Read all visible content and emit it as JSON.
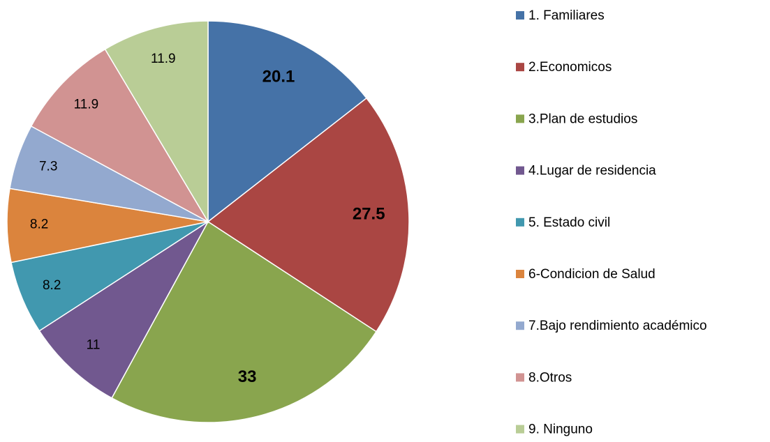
{
  "chart_data": {
    "type": "pie",
    "categories": [
      "1. Familiares",
      "2.Economicos",
      "3.Plan de estudios",
      "4.Lugar de residencia",
      "5. Estado civil",
      "6-Condicion de Salud",
      "7.Bajo rendimiento académico",
      "8.Otros",
      "9. Ninguno"
    ],
    "values": [
      20.1,
      27.5,
      33,
      11,
      8.2,
      8.2,
      7.3,
      11.9,
      11.9
    ],
    "colors": [
      "#4572a7",
      "#aa4643",
      "#89a54e",
      "#71588f",
      "#4198af",
      "#db843d",
      "#93a9cf",
      "#d19392",
      "#b9cd96"
    ],
    "label_bold": [
      true,
      true,
      true,
      false,
      false,
      false,
      false,
      false,
      false
    ],
    "legend": "right"
  }
}
